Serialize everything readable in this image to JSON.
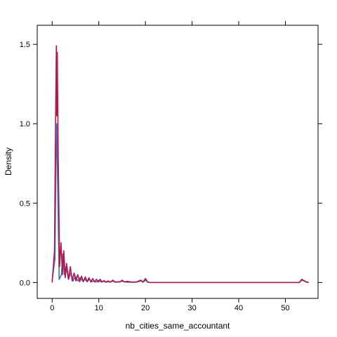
{
  "chart_data": {
    "type": "line",
    "title": "",
    "xlabel": "nb_cities_same_accountant",
    "ylabel": "Density",
    "xlim": [
      -3.2,
      57.0
    ],
    "ylim": [
      -0.1,
      1.62
    ],
    "x_ticks": [
      0,
      10,
      20,
      30,
      40,
      50
    ],
    "y_ticks": [
      0.0,
      0.5,
      1.0,
      1.5
    ],
    "x_tick_labels": [
      "0",
      "10",
      "20",
      "30",
      "40",
      "50"
    ],
    "y_tick_labels": [
      "0.0",
      "0.5",
      "1.0",
      "1.5"
    ],
    "grid": false,
    "legend": "none",
    "series": [
      {
        "color": "#3a6fc4",
        "x": [
          0,
          0.6,
          0.8,
          1.0,
          1.2,
          1.5,
          2.0,
          2.3,
          2.6,
          3.0,
          3.5,
          4.0,
          4.5,
          5.0,
          5.5,
          6.0,
          6.5,
          7.0,
          7.5,
          8.0,
          8.5,
          9.0,
          9.5,
          10.0,
          10.5,
          11.0,
          11.5,
          12.0,
          12.5,
          13.0,
          13.5,
          14.0,
          15.0,
          16.0,
          18.0,
          19.0,
          19.5,
          20.0,
          20.5,
          21.0,
          30.0,
          53.0,
          53.5,
          54.0,
          54.5,
          55.0
        ],
        "y": [
          0.01,
          0.15,
          0.7,
          1.0,
          0.6,
          0.02,
          0.05,
          0.18,
          0.05,
          0.1,
          0.02,
          0.06,
          0.01,
          0.04,
          0.01,
          0.03,
          0.01,
          0.02,
          0.005,
          0.02,
          0.005,
          0.01,
          0.003,
          0.015,
          0.003,
          0.008,
          0.002,
          0.005,
          0.002,
          0.01,
          0.002,
          0.003,
          0.008,
          0.002,
          0.002,
          0.01,
          0.002,
          0.015,
          0.002,
          0.0,
          0.0,
          0.0,
          0.015,
          0.01,
          0.002,
          0.0
        ]
      },
      {
        "color": "#b5174a",
        "x": [
          0,
          0.5,
          0.7,
          0.9,
          1.0,
          1.1,
          1.3,
          1.6,
          1.9,
          2.2,
          2.5,
          2.8,
          3.1,
          3.5,
          3.9,
          4.3,
          4.7,
          5.1,
          5.5,
          5.9,
          6.3,
          6.7,
          7.1,
          7.5,
          7.9,
          8.3,
          8.7,
          9.1,
          9.5,
          9.9,
          10.3,
          10.7,
          11.1,
          11.5,
          12.0,
          12.5,
          13.0,
          13.5,
          14.0,
          14.5,
          15.0,
          15.5,
          16.0,
          17.0,
          18.0,
          19.0,
          19.5,
          20.0,
          20.5,
          21.0,
          30.0,
          53.0,
          53.5,
          54.0,
          54.5,
          55.0
        ],
        "y": [
          0.0,
          0.2,
          0.9,
          1.49,
          1.05,
          1.45,
          0.8,
          0.1,
          0.25,
          0.05,
          0.2,
          0.03,
          0.12,
          0.02,
          0.1,
          0.01,
          0.06,
          0.01,
          0.05,
          0.005,
          0.04,
          0.005,
          0.035,
          0.005,
          0.03,
          0.003,
          0.025,
          0.003,
          0.02,
          0.003,
          0.02,
          0.003,
          0.012,
          0.003,
          0.01,
          0.003,
          0.015,
          0.003,
          0.005,
          0.003,
          0.015,
          0.003,
          0.008,
          0.003,
          0.003,
          0.015,
          0.003,
          0.025,
          0.003,
          0.0,
          0.0,
          0.0,
          0.02,
          0.012,
          0.003,
          0.0
        ]
      }
    ]
  }
}
